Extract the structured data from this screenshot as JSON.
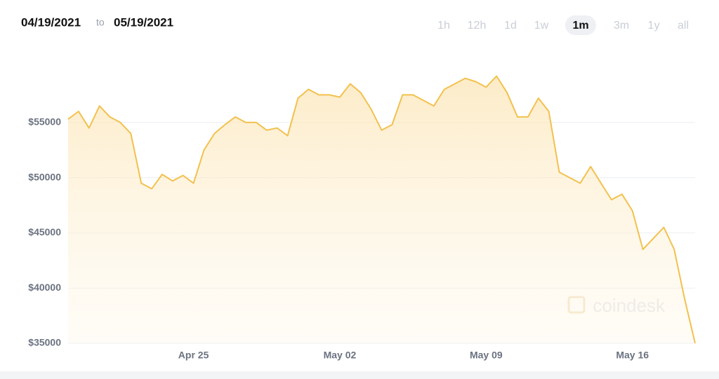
{
  "header": {
    "from": "04/19/2021",
    "to_word": "to",
    "to": "05/19/2021"
  },
  "ranges": {
    "options": [
      "1h",
      "12h",
      "1d",
      "1w",
      "1m",
      "3m",
      "1y",
      "all"
    ],
    "selected": "1m"
  },
  "watermark": "coindesk",
  "chart_data": {
    "type": "line",
    "categories": [
      null,
      null,
      null,
      null,
      null,
      null,
      null,
      null,
      null,
      null,
      null,
      null,
      "Apr 25",
      null,
      null,
      null,
      null,
      null,
      null,
      null,
      null,
      null,
      null,
      null,
      null,
      null,
      "May 02",
      null,
      null,
      null,
      null,
      null,
      null,
      null,
      null,
      null,
      null,
      null,
      null,
      null,
      "May 09",
      null,
      null,
      null,
      null,
      null,
      null,
      null,
      null,
      null,
      null,
      null,
      null,
      null,
      "May 16",
      null,
      null,
      null,
      null,
      null,
      null
    ],
    "values": [
      55300,
      56000,
      54500,
      56500,
      55500,
      55000,
      54000,
      49500,
      49000,
      50300,
      49700,
      50200,
      49500,
      52500,
      54000,
      54800,
      55500,
      55000,
      55000,
      54300,
      54500,
      53800,
      57200,
      58000,
      57500,
      57500,
      57300,
      58500,
      57700,
      56200,
      54300,
      54800,
      57500,
      57500,
      57000,
      56500,
      58000,
      58500,
      59000,
      58700,
      58200,
      59200,
      57700,
      55500,
      55500,
      57200,
      56000,
      50500,
      50000,
      49500,
      51000,
      49500,
      48000,
      48500,
      47000,
      43500,
      44500,
      45500,
      43500,
      39000,
      35000
    ],
    "color": "#f2c14e",
    "ylim": [
      35000,
      60000
    ],
    "yticks": [
      {
        "value": 35000,
        "label": "$35000"
      },
      {
        "value": 40000,
        "label": "$40000"
      },
      {
        "value": 45000,
        "label": "$45000"
      },
      {
        "value": 50000,
        "label": "$50000"
      },
      {
        "value": 55000,
        "label": "$55000"
      }
    ],
    "grid": true
  }
}
